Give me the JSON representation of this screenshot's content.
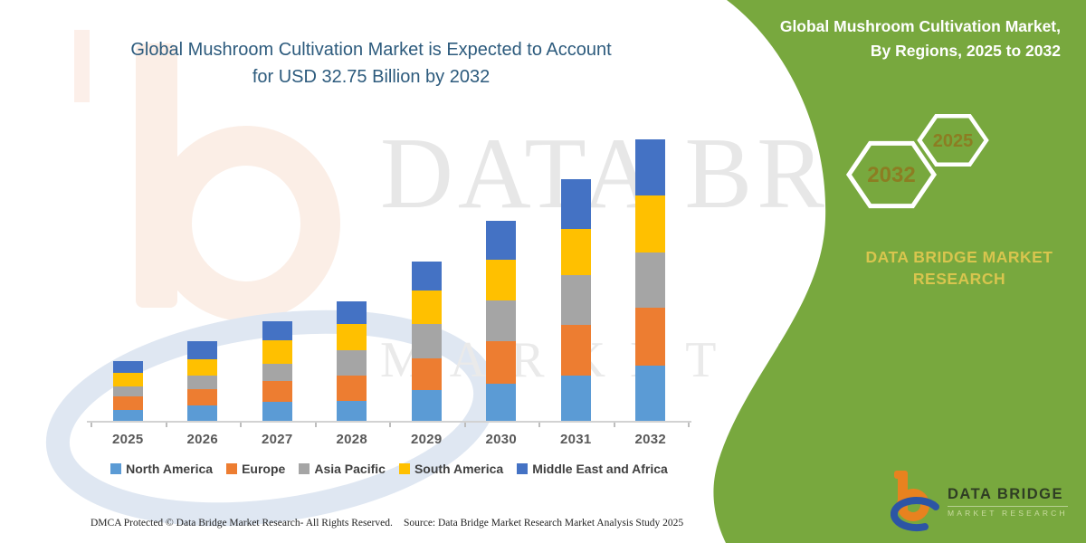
{
  "header": {
    "title_line1": "Global Mushroom Cultivation Market is Expected to Account",
    "title_line2": "for USD 32.75 Billion by 2032"
  },
  "side_panel": {
    "heading_line1": "Global Mushroom Cultivation Market,",
    "heading_line2": "By Regions, 2025 to 2032",
    "hexagon_back_label": "2032",
    "hexagon_front_label": "2025",
    "brand_line1": "DATA BRIDGE MARKET",
    "brand_line2": "RESEARCH"
  },
  "watermark": {
    "line1": "DATA BRIDGE",
    "line2": "MARKET RESEARCH"
  },
  "logo": {
    "title": "DATA BRIDGE",
    "subtitle": "MARKET RESEARCH"
  },
  "footer": {
    "dmca": "DMCA Protected © Data Bridge Market Research- All Rights Reserved.",
    "source": "Source: Data Bridge Market Research  Market Analysis Study 2025"
  },
  "colors": {
    "panel_green": "#78A83E",
    "brand_gold": "#D8C54E",
    "hexagon_label": "#8C7D22",
    "title_text": "#2D5B7D",
    "axis_gray": "#d2d2d2"
  },
  "chart_data": {
    "type": "bar",
    "stacked": true,
    "unit": "USD Billion",
    "title": "Global Mushroom Cultivation Market is Expected to Account for USD 32.75 Billion by 2032",
    "categories": [
      "2025",
      "2026",
      "2027",
      "2028",
      "2029",
      "2030",
      "2031",
      "2032"
    ],
    "series": [
      {
        "name": "North America",
        "color": "#5B9BD5",
        "values": [
          1.4,
          1.9,
          2.3,
          2.4,
          3.7,
          4.4,
          5.4,
          6.5
        ]
      },
      {
        "name": "Europe",
        "color": "#ED7D31",
        "values": [
          1.6,
          1.9,
          2.4,
          3.0,
          3.7,
          4.9,
          5.8,
          6.7
        ]
      },
      {
        "name": "Asia Pacific",
        "color": "#A5A5A5",
        "values": [
          1.1,
          1.6,
          2.0,
          2.9,
          4.0,
          4.8,
          5.8,
          6.4
        ]
      },
      {
        "name": "South America",
        "color": "#FFC000",
        "values": [
          1.6,
          1.9,
          2.7,
          3.0,
          3.8,
          4.7,
          5.4,
          6.65
        ]
      },
      {
        "name": "Middle East and Africa",
        "color": "#4472C4",
        "values": [
          1.4,
          2.0,
          2.2,
          2.7,
          3.4,
          4.5,
          5.7,
          6.5
        ]
      }
    ],
    "totals": [
      7.1,
      9.3,
      11.6,
      14.0,
      18.6,
      23.3,
      28.1,
      32.75
    ],
    "ylim": [
      0,
      33
    ],
    "grid": false,
    "y_axis_shown": false,
    "legend_position": "bottom"
  }
}
